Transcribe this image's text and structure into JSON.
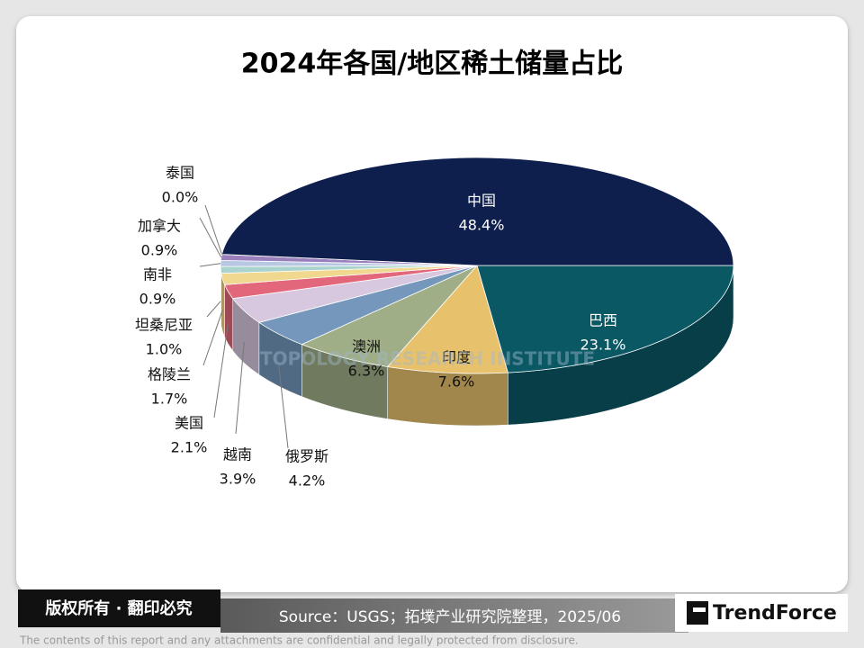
{
  "chart_data": {
    "type": "pie3d",
    "title": "2024年各国/地区稀土储量占比",
    "categories": [
      "巴西",
      "印度",
      "澳洲",
      "俄罗斯",
      "越南",
      "美国",
      "格陵兰",
      "坦桑尼亚",
      "南非",
      "加拿大",
      "泰国",
      "中国"
    ],
    "values": [
      23.1,
      7.6,
      6.3,
      4.2,
      3.9,
      2.1,
      1.7,
      1.0,
      0.9,
      0.9,
      0.0,
      48.4
    ],
    "value_labels": [
      "23.1%",
      "7.6%",
      "6.3%",
      "4.2%",
      "3.9%",
      "2.1%",
      "1.7%",
      "1.0%",
      "0.9%",
      "0.9%",
      "0.0%",
      "48.4%"
    ],
    "colors": [
      "#0b5865",
      "#e8c16c",
      "#9fae86",
      "#7497bb",
      "#d8c8df",
      "#e3677b",
      "#f1d88f",
      "#a9d3cc",
      "#b8c8e3",
      "#9a80bd",
      "#7a5ea0",
      "#0e1f4e"
    ],
    "watermark": "TOPOLOGY RESEARCH INSTITUTE"
  },
  "footer": {
    "copyright": "版权所有 · 翻印必究",
    "source": "Source：USGS；拓墣产业研究院整理，2025/06",
    "logo": "TrendForce",
    "disclaimer": "The contents of this report and any attachments are confidential and legally protected from disclosure."
  }
}
